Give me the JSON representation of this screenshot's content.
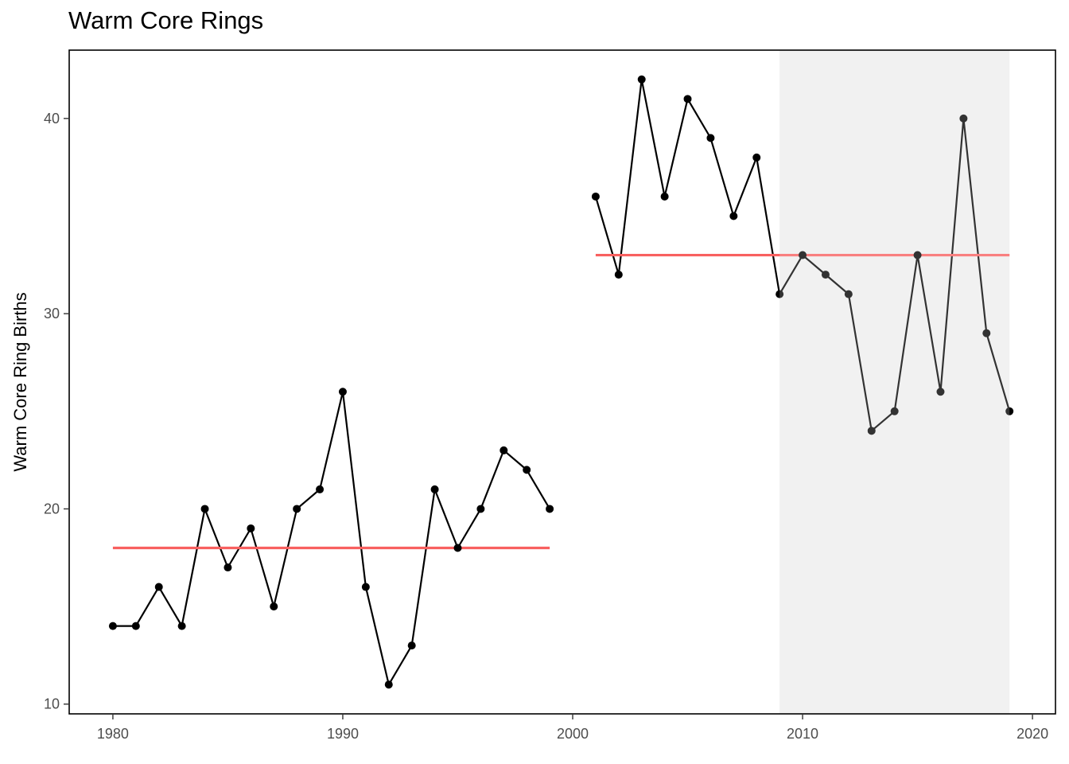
{
  "chart_data": {
    "type": "line",
    "title": "Warm Core Rings",
    "xlabel": "",
    "ylabel": "Warm Core Ring Births",
    "xlim": [
      1978.1,
      2021.0
    ],
    "ylim": [
      9.5,
      43.5
    ],
    "x_ticks": [
      1980,
      1990,
      2000,
      2010,
      2020
    ],
    "y_ticks": [
      10,
      20,
      30,
      40
    ],
    "grid": false,
    "shaded_region": {
      "x_start": 2009,
      "x_end": 2019,
      "color": "#eeeeee"
    },
    "series": [
      {
        "x": [
          1980,
          1981,
          1982,
          1983,
          1984,
          1985,
          1986,
          1987,
          1988,
          1989,
          1990,
          1991,
          1992,
          1993,
          1994,
          1995,
          1996,
          1997,
          1998,
          1999,
          2000,
          2001,
          2002,
          2003,
          2004,
          2005,
          2006,
          2007,
          2008,
          2009,
          2010,
          2011,
          2012,
          2013,
          2014,
          2015,
          2016,
          2017,
          2018,
          2019
        ],
        "y": [
          14,
          14,
          16,
          14,
          20,
          17,
          19,
          15,
          20,
          21,
          26,
          16,
          11,
          13,
          21,
          18,
          20,
          23,
          22,
          20,
          null,
          36,
          32,
          42,
          36,
          41,
          39,
          35,
          38,
          31,
          33,
          32,
          31,
          24,
          25,
          33,
          26,
          40,
          29,
          25
        ],
        "color": "#000000"
      }
    ],
    "mean_lines": [
      {
        "x_start": 1980,
        "x_end": 1999,
        "y": 18,
        "color": "#f8605f"
      },
      {
        "x_start": 2001,
        "x_end": 2019,
        "y": 33,
        "color": "#f8605f"
      }
    ]
  }
}
